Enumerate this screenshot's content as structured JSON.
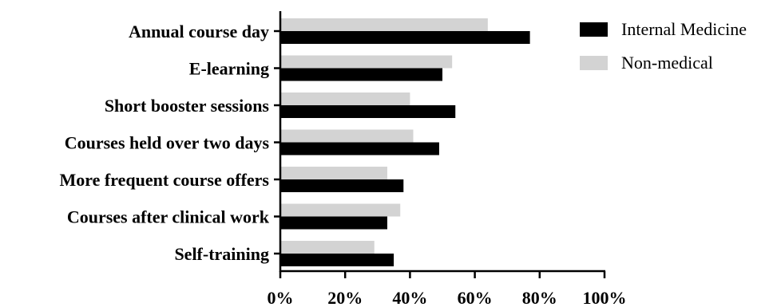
{
  "chart_data": {
    "type": "bar",
    "orientation": "horizontal",
    "categories": [
      "Annual course day",
      "E-learning",
      "Short booster sessions",
      "Courses held over two days",
      "More frequent course offers",
      "Courses after clinical work",
      "Self-training"
    ],
    "series": [
      {
        "name": "Internal Medicine",
        "color": "#000000",
        "values": [
          77,
          50,
          54,
          49,
          38,
          33,
          35
        ]
      },
      {
        "name": "Non-medical",
        "color": "#d3d3d3",
        "values": [
          64,
          53,
          40,
          41,
          33,
          37,
          29
        ]
      }
    ],
    "xticks": [
      "0%",
      "20%",
      "40%",
      "60%",
      "80%",
      "100%"
    ],
    "xlim": [
      0,
      100
    ],
    "grid": false,
    "legend_position": "top-right"
  }
}
